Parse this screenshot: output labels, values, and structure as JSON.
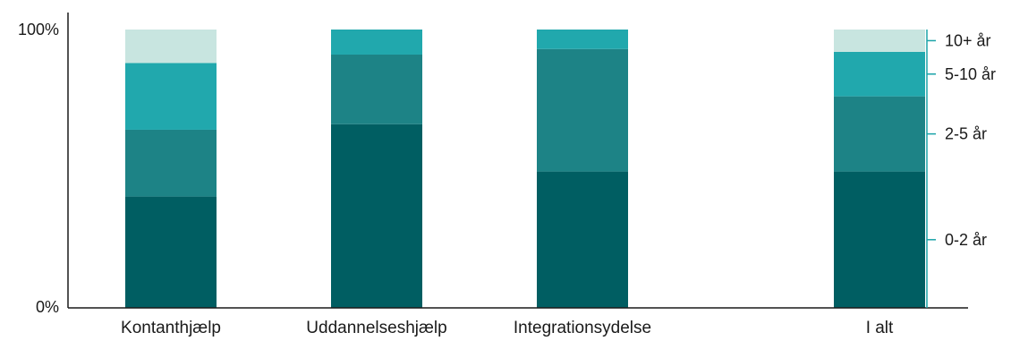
{
  "chart_data": {
    "type": "bar",
    "stacked": "percent",
    "title": "",
    "xlabel": "",
    "ylabel": "",
    "ylim": [
      0,
      100
    ],
    "y_ticks": [
      "0%",
      "100%"
    ],
    "categories": [
      "Kontanthjælp",
      "Uddannelseshjælp",
      "Integrationsydelse",
      "I alt"
    ],
    "series": [
      {
        "name": "0-2 år",
        "color": "#005e62",
        "values": [
          40,
          66,
          49,
          49
        ]
      },
      {
        "name": "2-5 år",
        "color": "#1d8386",
        "values": [
          24,
          25,
          44,
          27
        ]
      },
      {
        "name": "5-10 år",
        "color": "#21a8ad",
        "values": [
          24,
          9,
          7,
          16
        ]
      },
      {
        "name": "10+ år",
        "color": "#c8e5e0",
        "values": [
          12,
          0,
          0,
          8
        ]
      }
    ],
    "legend_placement": "right, aligned to stacked segments",
    "grid": false
  }
}
